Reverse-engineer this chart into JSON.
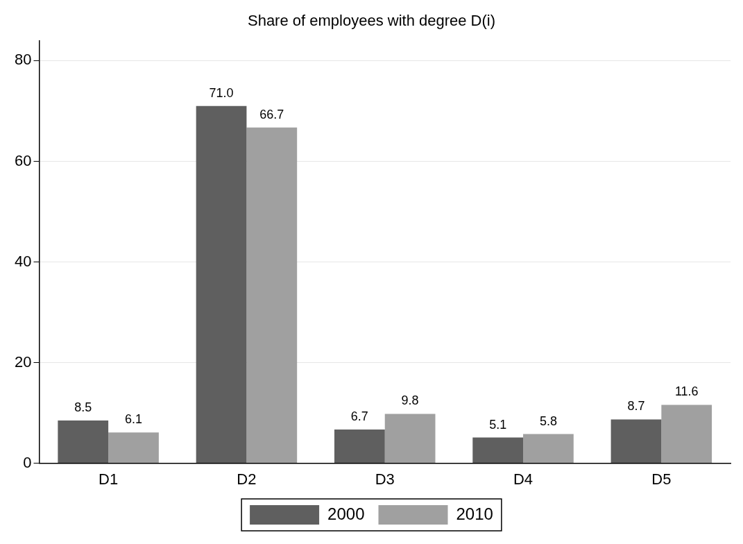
{
  "chart_data": {
    "type": "bar",
    "title": "Share of employees with degree D(i)",
    "categories": [
      "D1",
      "D2",
      "D3",
      "D4",
      "D5"
    ],
    "series": [
      {
        "name": "2000",
        "color": "#5f5f5f",
        "values": [
          8.5,
          71.0,
          6.7,
          5.1,
          8.7
        ],
        "value_labels": [
          "8.5",
          "71.0",
          "6.7",
          "5.1",
          "8.7"
        ]
      },
      {
        "name": "2010",
        "color": "#a0a0a0",
        "values": [
          6.1,
          66.7,
          9.8,
          5.8,
          11.6
        ],
        "value_labels": [
          "6.1",
          "66.7",
          "9.8",
          "5.8",
          "11.6"
        ]
      }
    ],
    "ylim": [
      0,
      84
    ],
    "yticks": [
      0,
      20,
      40,
      60,
      80
    ],
    "grid": "y",
    "legend": "bottom"
  }
}
